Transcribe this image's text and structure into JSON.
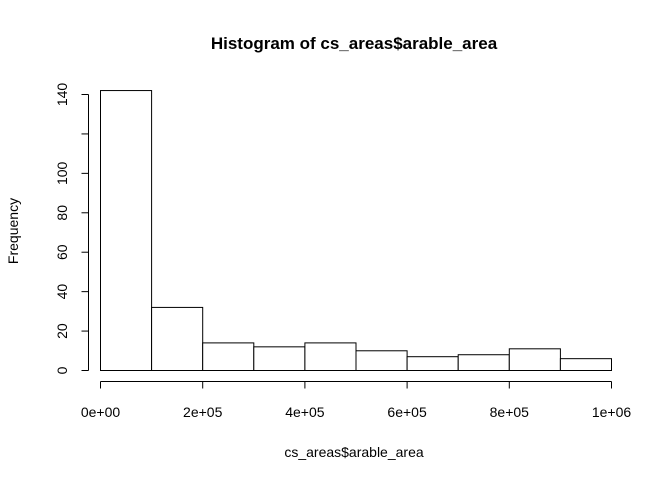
{
  "chart_data": {
    "type": "bar",
    "title": "Histogram of cs_areas$arable_area",
    "xlabel": "cs_areas$arable_area",
    "ylabel": "Frequency",
    "bins": [
      {
        "start": 0,
        "end": 100000,
        "count": 142
      },
      {
        "start": 100000,
        "end": 200000,
        "count": 32
      },
      {
        "start": 200000,
        "end": 300000,
        "count": 14
      },
      {
        "start": 300000,
        "end": 400000,
        "count": 12
      },
      {
        "start": 400000,
        "end": 500000,
        "count": 14
      },
      {
        "start": 500000,
        "end": 600000,
        "count": 10
      },
      {
        "start": 600000,
        "end": 700000,
        "count": 7
      },
      {
        "start": 700000,
        "end": 800000,
        "count": 8
      },
      {
        "start": 800000,
        "end": 900000,
        "count": 11
      },
      {
        "start": 900000,
        "end": 1000000,
        "count": 6
      }
    ],
    "xlim": [
      0,
      1000000
    ],
    "ylim": [
      0,
      142
    ],
    "x_ticks": [
      {
        "value": 0,
        "label": "0e+00"
      },
      {
        "value": 200000,
        "label": "2e+05"
      },
      {
        "value": 400000,
        "label": "4e+05"
      },
      {
        "value": 600000,
        "label": "6e+05"
      },
      {
        "value": 800000,
        "label": "8e+05"
      },
      {
        "value": 1000000,
        "label": "1e+06"
      }
    ],
    "y_ticks": [
      {
        "value": 0,
        "label": "0"
      },
      {
        "value": 20,
        "label": "20"
      },
      {
        "value": 40,
        "label": "40"
      },
      {
        "value": 60,
        "label": "60"
      },
      {
        "value": 80,
        "label": "80"
      },
      {
        "value": 100,
        "label": "100"
      },
      {
        "value": 120,
        "label": ""
      },
      {
        "value": 140,
        "label": "140"
      }
    ],
    "grid": false,
    "legend": "none"
  }
}
